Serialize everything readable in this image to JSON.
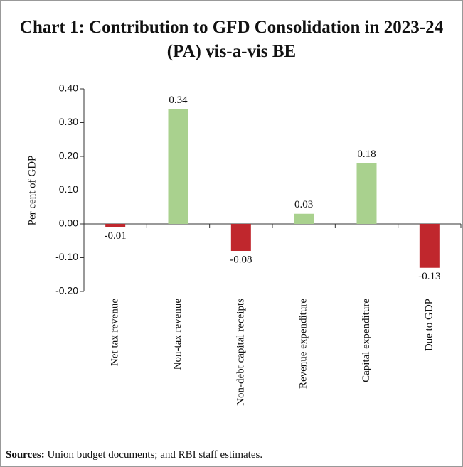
{
  "chart_data": {
    "type": "bar",
    "title": "Chart 1: Contribution to GFD Consolidation in 2023-24 (PA) vis-a-vis BE",
    "y_label": "Per cent of GDP",
    "categories": [
      "Net tax revenue",
      "Non-tax revenue",
      "Non-debt capital receipts",
      "Revenue expenditure",
      "Capital expenditure",
      "Due to GDP"
    ],
    "values": [
      -0.01,
      0.34,
      -0.08,
      0.03,
      0.18,
      -0.13
    ],
    "colors": [
      "#c0272d",
      "#a9d18e",
      "#c0272d",
      "#a9d18e",
      "#a9d18e",
      "#c0272d"
    ],
    "ylim": [
      -0.2,
      0.4
    ],
    "yticks": [
      {
        "value": -0.2,
        "label": "-0.20"
      },
      {
        "value": -0.1,
        "label": "-0.10"
      },
      {
        "value": 0,
        "label": "0.00"
      },
      {
        "value": 0.1,
        "label": "0.10"
      },
      {
        "value": 0.2,
        "label": "0.20"
      },
      {
        "value": 0.3,
        "label": "0.30"
      },
      {
        "value": 0.4,
        "label": "0.40"
      }
    ],
    "grid": false,
    "source_label": "Sources:",
    "source": "Union budget documents; and RBI staff estimates."
  }
}
